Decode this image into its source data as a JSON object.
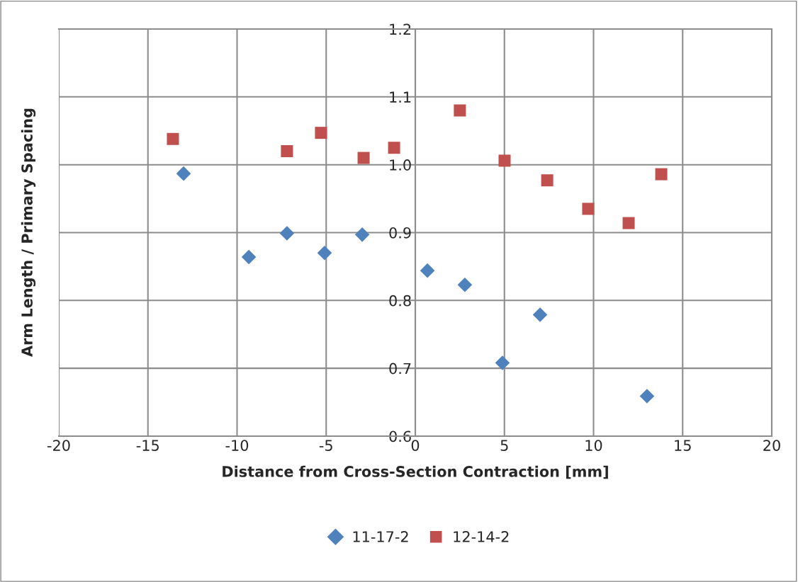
{
  "chart_data": {
    "type": "scatter",
    "xlabel": "Distance from Cross-Section Contraction [mm]",
    "ylabel": "Arm Length / Primary Spacing",
    "series": [
      {
        "name": "11-17-2",
        "color": "#4f81bd",
        "marker": "diamond",
        "x": [
          -13.0,
          -9.34,
          -7.2,
          -5.09,
          -2.98,
          0.68,
          2.78,
          4.89,
          7.0,
          13.0
        ],
        "values": [
          0.987,
          0.864,
          0.899,
          0.87,
          0.897,
          0.844,
          0.823,
          0.708,
          0.779,
          0.659
        ]
      },
      {
        "name": "12-14-2",
        "color": "#c0504d",
        "marker": "square",
        "x": [
          -13.6,
          -7.2,
          -5.29,
          -2.9,
          -1.19,
          2.5,
          5.01,
          7.4,
          9.7,
          11.97,
          13.8
        ],
        "values": [
          1.038,
          1.02,
          1.047,
          1.01,
          1.025,
          1.08,
          1.006,
          0.977,
          0.935,
          0.914,
          0.986
        ]
      }
    ],
    "xlim": [
      -20,
      20
    ],
    "xticks": [
      -20,
      -15,
      -10,
      -5,
      0,
      5,
      10,
      15,
      20
    ],
    "ylim": [
      0.6,
      1.2
    ],
    "yticks": [
      {
        "value": 0.6,
        "label": "0.6"
      },
      {
        "value": 0.7,
        "label": "0.7"
      },
      {
        "value": 0.8,
        "label": "0.8"
      },
      {
        "value": 0.9,
        "label": "0.9"
      },
      {
        "value": 1.0,
        "label": "1.0"
      },
      {
        "value": 1.1,
        "label": "1.1"
      },
      {
        "value": 1.2,
        "label": "1.2"
      }
    ],
    "grid": true,
    "legend": "bottom"
  }
}
